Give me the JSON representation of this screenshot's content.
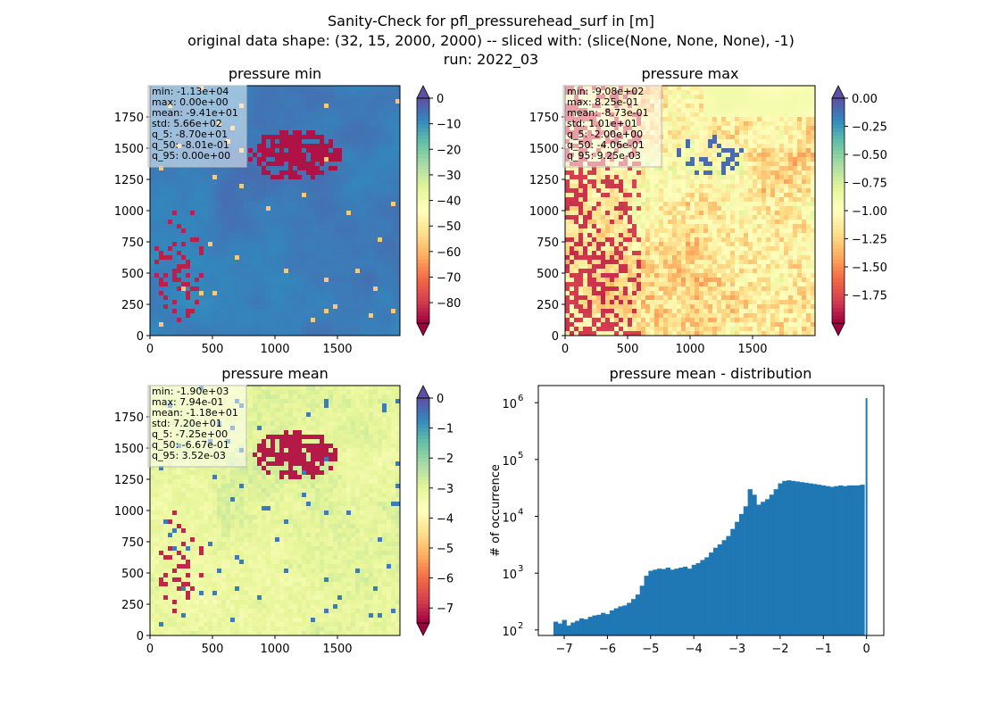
{
  "figure": {
    "suptitle": [
      "Sanity-Check for pfl_pressurehead_surf in [m]",
      "original data shape: (32, 15, 2000, 2000) -- sliced with: (slice(None, None, None), -1)",
      "run: 2022_03"
    ]
  },
  "colormap": {
    "name": "Spectral",
    "stops": [
      "#9e0142",
      "#d53e4f",
      "#f46d43",
      "#fdae61",
      "#fee08b",
      "#ffffbf",
      "#e6f598",
      "#abdda4",
      "#66c2a5",
      "#3288bd",
      "#5e4fa2"
    ]
  },
  "panels": [
    {
      "title": "pressure min",
      "x_ticks": [
        "0",
        "500",
        "1000",
        "1500"
      ],
      "y_ticks": [
        "0",
        "250",
        "500",
        "750",
        "1000",
        "1250",
        "1500",
        "1750"
      ],
      "stats": [
        "min: -1.13e+04",
        "max: 0.00e+00",
        "mean: -9.41e+01",
        "std: 5.66e+02",
        "q_5: -8.70e+01",
        "q_50: -8.01e-01",
        "q_95: 0.00e+00"
      ],
      "colorbar": {
        "min": -88,
        "max": 0,
        "ticks": [
          "0",
          "−10",
          "−20",
          "−30",
          "−40",
          "−50",
          "−60",
          "−70",
          "−80"
        ],
        "tick_values": [
          0,
          -10,
          -20,
          -30,
          -40,
          -50,
          -60,
          -70,
          -80
        ]
      }
    },
    {
      "title": "pressure max",
      "x_ticks": [
        "0",
        "500",
        "1000",
        "1500"
      ],
      "y_ticks": [
        "0",
        "250",
        "500",
        "750",
        "1000",
        "1250",
        "1500",
        "1750"
      ],
      "stats": [
        "min: -9.08e+02",
        "max: 8.25e-01",
        "mean: -8.73e-01",
        "std: 1.01e+01",
        "q_5: -2.00e+00",
        "q_50: -4.06e-01",
        "q_95: 9.25e-03"
      ],
      "colorbar": {
        "min": -2.0,
        "max": 0.0,
        "ticks": [
          "0.00",
          "−0.25",
          "−0.50",
          "−0.75",
          "−1.00",
          "−1.25",
          "−1.50",
          "−1.75"
        ],
        "tick_values": [
          0,
          -0.25,
          -0.5,
          -0.75,
          -1.0,
          -1.25,
          -1.5,
          -1.75
        ]
      }
    },
    {
      "title": "pressure mean",
      "x_ticks": [
        "0",
        "500",
        "1000",
        "1500"
      ],
      "y_ticks": [
        "0",
        "250",
        "500",
        "750",
        "1000",
        "1250",
        "1500",
        "1750"
      ],
      "stats": [
        "min: -1.90e+03",
        "max: 7.94e-01",
        "mean: -1.18e+01",
        "std: 7.20e+01",
        "q_5: -7.25e+00",
        "q_50: -6.67e-01",
        "q_95: 3.52e-03"
      ],
      "colorbar": {
        "min": -7.5,
        "max": 0,
        "ticks": [
          "0",
          "−1",
          "−2",
          "−3",
          "−4",
          "−5",
          "−6",
          "−7"
        ],
        "tick_values": [
          0,
          -1,
          -2,
          -3,
          -4,
          -5,
          -6,
          -7
        ]
      }
    }
  ],
  "histogram": {
    "title": "pressure mean - distribution",
    "ylabel": "# of occurrence",
    "x_ticks": [
      "−7",
      "−6",
      "−5",
      "−4",
      "−3",
      "−2",
      "−1",
      "0"
    ],
    "y_ticks": [
      "10",
      "10",
      "10",
      "10"
    ],
    "y_tick_exponents": [
      "2",
      "3",
      "4",
      "5",
      "6"
    ],
    "bar_color": "#1f77b4"
  },
  "chart_data": [
    {
      "type": "heatmap",
      "title": "pressure min",
      "xlim": [
        0,
        2000
      ],
      "ylim": [
        0,
        2000
      ],
      "colorbar_range": [
        -88,
        0
      ],
      "colormap": "Spectral",
      "colorbar_extend": "both",
      "stats": {
        "min": -11300,
        "max": 0.0,
        "mean": -94.1,
        "std": 566,
        "q_5": -87.0,
        "q_50": -0.801,
        "q_95": 0.0
      }
    },
    {
      "type": "heatmap",
      "title": "pressure max",
      "xlim": [
        0,
        2000
      ],
      "ylim": [
        0,
        2000
      ],
      "colorbar_range": [
        -2.0,
        0.0
      ],
      "colormap": "Spectral",
      "colorbar_extend": "both",
      "stats": {
        "min": -908,
        "max": 0.825,
        "mean": -0.873,
        "std": 10.1,
        "q_5": -2.0,
        "q_50": -0.406,
        "q_95": 0.00925
      }
    },
    {
      "type": "heatmap",
      "title": "pressure mean",
      "xlim": [
        0,
        2000
      ],
      "ylim": [
        0,
        2000
      ],
      "colorbar_range": [
        -7.5,
        0
      ],
      "colormap": "Spectral",
      "colorbar_extend": "both",
      "stats": {
        "min": -1900,
        "max": 0.794,
        "mean": -11.8,
        "std": 72.0,
        "q_5": -7.25,
        "q_50": -0.667,
        "q_95": 0.00352
      }
    },
    {
      "type": "bar",
      "title": "pressure mean - distribution",
      "ylabel": "# of occurrence",
      "yscale": "log",
      "xlim": [
        -7.6,
        0.4
      ],
      "ylim": [
        80,
        2000000
      ],
      "x": [
        -7.2,
        -7.1,
        -7.0,
        -6.9,
        -6.8,
        -6.7,
        -6.6,
        -6.5,
        -6.4,
        -6.3,
        -6.2,
        -6.1,
        -6.0,
        -5.9,
        -5.8,
        -5.7,
        -5.6,
        -5.5,
        -5.4,
        -5.3,
        -5.2,
        -5.1,
        -5.0,
        -4.9,
        -4.8,
        -4.7,
        -4.6,
        -4.5,
        -4.4,
        -4.3,
        -4.2,
        -4.1,
        -4.0,
        -3.9,
        -3.8,
        -3.7,
        -3.6,
        -3.5,
        -3.4,
        -3.3,
        -3.2,
        -3.1,
        -3.0,
        -2.9,
        -2.8,
        -2.7,
        -2.6,
        -2.5,
        -2.4,
        -2.3,
        -2.2,
        -2.1,
        -2.0,
        -1.9,
        -1.8,
        -1.7,
        -1.6,
        -1.5,
        -1.4,
        -1.3,
        -1.2,
        -1.1,
        -1.0,
        -0.9,
        -0.8,
        -0.7,
        -0.6,
        -0.5,
        -0.4,
        -0.3,
        -0.2,
        -0.1,
        0.0
      ],
      "values": [
        140,
        130,
        150,
        120,
        135,
        145,
        160,
        155,
        170,
        180,
        185,
        200,
        190,
        220,
        240,
        260,
        270,
        300,
        350,
        420,
        600,
        900,
        1100,
        1150,
        1200,
        1180,
        1250,
        1150,
        1200,
        1250,
        1300,
        1200,
        1400,
        1500,
        1700,
        1900,
        2300,
        2800,
        3200,
        3800,
        4500,
        6000,
        8000,
        11000,
        15000,
        30000,
        24000,
        16000,
        18000,
        20000,
        24000,
        30000,
        38000,
        42000,
        43000,
        42000,
        41000,
        40000,
        39000,
        38000,
        37000,
        36000,
        35000,
        34000,
        33000,
        34000,
        35000,
        34000,
        35000,
        35000,
        35000,
        36000,
        1200000
      ]
    }
  ]
}
